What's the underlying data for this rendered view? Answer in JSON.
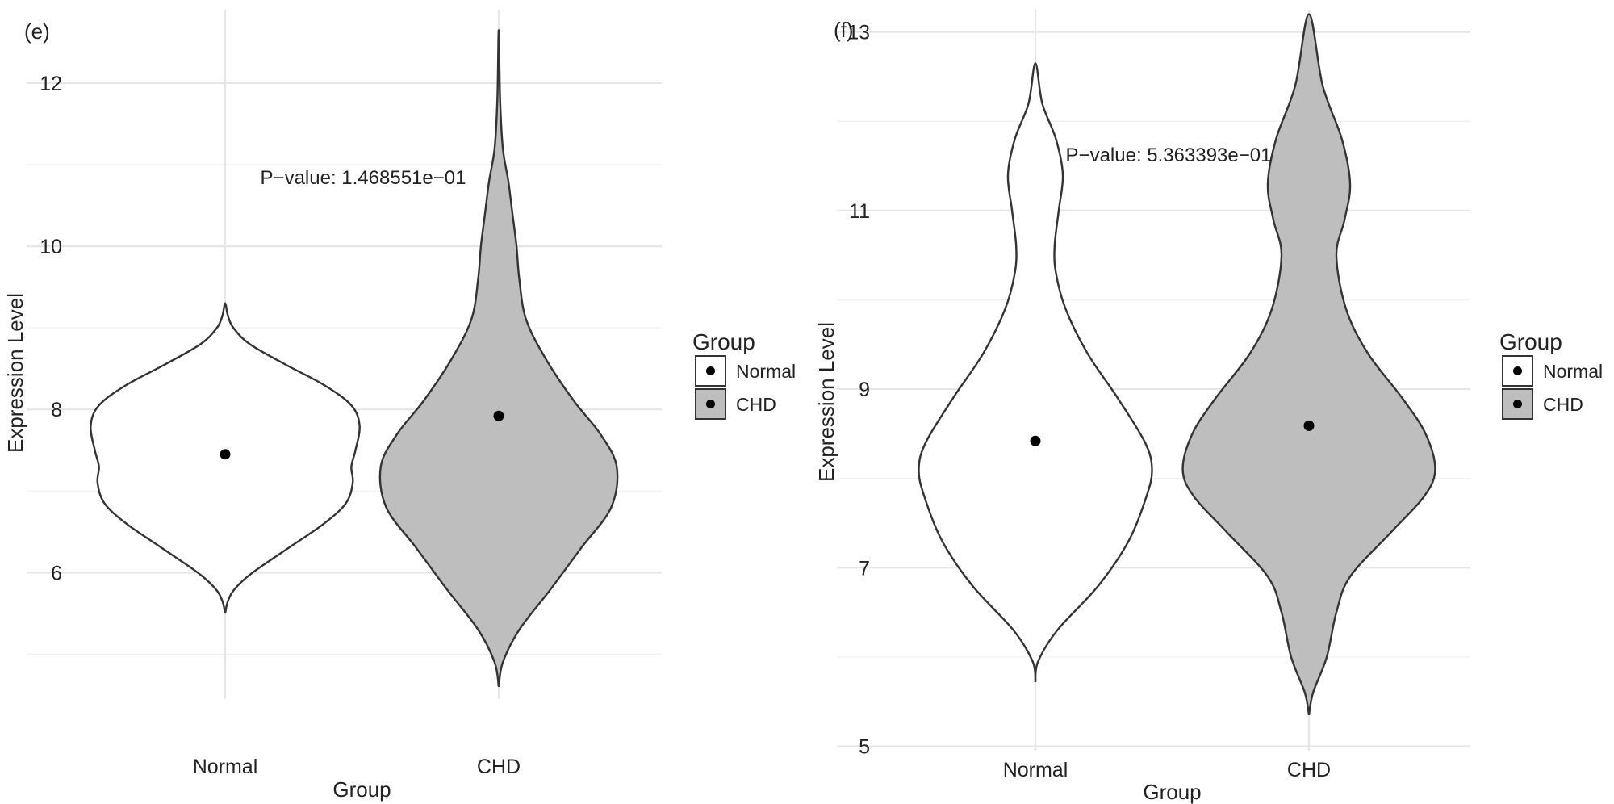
{
  "chart_data": [
    {
      "type": "violin",
      "panel_label": "(e)",
      "xlabel": "Group",
      "ylabel": "Expression Level",
      "categories": [
        "Normal",
        "CHD"
      ],
      "ylim": [
        4.45,
        12.9
      ],
      "yticks": [
        6,
        8,
        10,
        12
      ],
      "ytick_labels": [
        "6",
        "8",
        "10",
        "12"
      ],
      "grid": true,
      "annotation": {
        "text": "P−value: 1.468551e−01",
        "x": 1.5,
        "y": 11.0
      },
      "series": [
        {
          "name": "Normal",
          "fill": "#ffffff",
          "mean": 7.45,
          "density": [
            [
              5.5,
              0.0
            ],
            [
              5.65,
              0.02
            ],
            [
              5.8,
              0.07
            ],
            [
              6.0,
              0.2
            ],
            [
              6.3,
              0.46
            ],
            [
              6.6,
              0.72
            ],
            [
              6.85,
              0.88
            ],
            [
              7.1,
              0.93
            ],
            [
              7.3,
              0.92
            ],
            [
              7.5,
              0.95
            ],
            [
              7.8,
              0.98
            ],
            [
              8.05,
              0.92
            ],
            [
              8.3,
              0.72
            ],
            [
              8.55,
              0.44
            ],
            [
              8.8,
              0.18
            ],
            [
              9.0,
              0.06
            ],
            [
              9.15,
              0.02
            ],
            [
              9.3,
              0.0
            ]
          ]
        },
        {
          "name": "CHD",
          "fill": "#bebebe",
          "mean": 7.92,
          "density": [
            [
              4.6,
              0.0
            ],
            [
              4.9,
              0.03
            ],
            [
              5.3,
              0.15
            ],
            [
              5.8,
              0.38
            ],
            [
              6.3,
              0.6
            ],
            [
              6.8,
              0.82
            ],
            [
              7.3,
              0.86
            ],
            [
              7.7,
              0.74
            ],
            [
              8.1,
              0.55
            ],
            [
              8.6,
              0.35
            ],
            [
              9.1,
              0.2
            ],
            [
              9.6,
              0.15
            ],
            [
              10.0,
              0.13
            ],
            [
              10.4,
              0.1
            ],
            [
              10.8,
              0.07
            ],
            [
              11.2,
              0.03
            ],
            [
              11.8,
              0.01
            ],
            [
              12.65,
              0.0
            ]
          ]
        }
      ],
      "legend": {
        "title": "Group",
        "items": [
          {
            "label": "Normal",
            "fill": "#ffffff"
          },
          {
            "label": "CHD",
            "fill": "#bebebe"
          }
        ]
      }
    },
    {
      "type": "violin",
      "panel_label": "(f)",
      "xlabel": "Group",
      "ylabel": "Expression Level",
      "categories": [
        "Normal",
        "CHD"
      ],
      "ylim": [
        4.95,
        13.25
      ],
      "yticks": [
        5,
        7,
        9,
        11,
        13
      ],
      "ytick_labels": [
        "5",
        "7",
        "9",
        "11",
        "13"
      ],
      "grid": true,
      "annotation": {
        "text": "P−value: 5.363393e−01",
        "x": 1.5,
        "y": 11.9
      },
      "series": [
        {
          "name": "Normal",
          "fill": "#ffffff",
          "mean": 8.42,
          "density": [
            [
              5.72,
              0.0
            ],
            [
              5.95,
              0.02
            ],
            [
              6.3,
              0.16
            ],
            [
              6.8,
              0.46
            ],
            [
              7.3,
              0.68
            ],
            [
              7.8,
              0.81
            ],
            [
              8.1,
              0.85
            ],
            [
              8.4,
              0.8
            ],
            [
              8.9,
              0.6
            ],
            [
              9.4,
              0.38
            ],
            [
              9.9,
              0.22
            ],
            [
              10.3,
              0.15
            ],
            [
              10.6,
              0.14
            ],
            [
              11.0,
              0.17
            ],
            [
              11.4,
              0.2
            ],
            [
              11.8,
              0.15
            ],
            [
              12.2,
              0.05
            ],
            [
              12.65,
              0.0
            ]
          ]
        },
        {
          "name": "CHD",
          "fill": "#bebebe",
          "mean": 8.59,
          "density": [
            [
              5.35,
              0.0
            ],
            [
              5.6,
              0.03
            ],
            [
              6.0,
              0.13
            ],
            [
              6.5,
              0.2
            ],
            [
              6.9,
              0.3
            ],
            [
              7.4,
              0.6
            ],
            [
              7.8,
              0.84
            ],
            [
              8.1,
              0.92
            ],
            [
              8.5,
              0.85
            ],
            [
              8.9,
              0.68
            ],
            [
              9.4,
              0.43
            ],
            [
              9.9,
              0.27
            ],
            [
              10.5,
              0.2
            ],
            [
              10.9,
              0.26
            ],
            [
              11.3,
              0.3
            ],
            [
              11.8,
              0.24
            ],
            [
              12.4,
              0.1
            ],
            [
              13.2,
              0.0
            ]
          ]
        }
      ],
      "legend": {
        "title": "Group",
        "items": [
          {
            "label": "Normal",
            "fill": "#ffffff"
          },
          {
            "label": "CHD",
            "fill": "#bebebe"
          }
        ]
      }
    }
  ]
}
